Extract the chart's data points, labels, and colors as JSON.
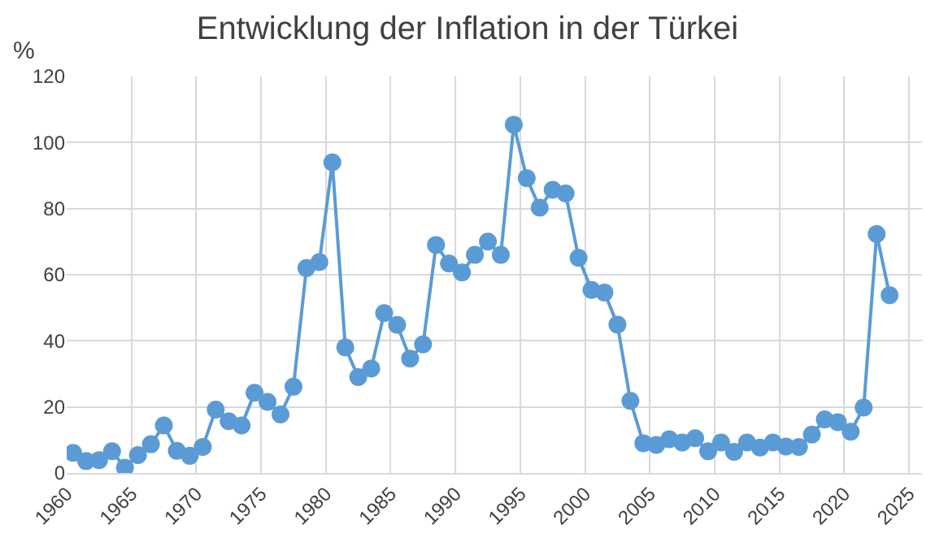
{
  "chart_data": {
    "type": "line",
    "title": "Entwicklung der Inflation in der Türkei",
    "ylabel": "%",
    "x": [
      1960.5,
      1961.5,
      1962.5,
      1963.5,
      1964.5,
      1965.5,
      1966.5,
      1967.5,
      1968.5,
      1969.5,
      1970.5,
      1971.5,
      1972.5,
      1973.5,
      1974.5,
      1975.5,
      1976.5,
      1977.5,
      1978.5,
      1979.5,
      1980.5,
      1981.5,
      1982.5,
      1983.5,
      1984.5,
      1985.5,
      1986.5,
      1987.5,
      1988.5,
      1989.5,
      1990.5,
      1991.5,
      1992.5,
      1993.5,
      1994.5,
      1995.5,
      1996.5,
      1997.5,
      1998.5,
      1999.5,
      2000.5,
      2001.5,
      2002.5,
      2003.5,
      2004.5,
      2005.5,
      2006.5,
      2007.5,
      2008.5,
      2009.5,
      2010.5,
      2011.5,
      2012.5,
      2013.5,
      2014.5,
      2015.5,
      2016.5,
      2017.5,
      2018.5,
      2019.5,
      2020.5,
      2021.5,
      2022.5,
      2023.5
    ],
    "series": [
      {
        "color": "#5b9bd5",
        "values": [
          6.1,
          3.6,
          3.9,
          6.6,
          1.6,
          5.4,
          8.7,
          14.4,
          6.7,
          5.2,
          7.9,
          19.2,
          15.7,
          14.4,
          24.3,
          21.5,
          17.7,
          26.1,
          62,
          63.8,
          94,
          38,
          29,
          31.6,
          48.4,
          44.8,
          34.6,
          38.9,
          69,
          63.4,
          60.7,
          66,
          70,
          66,
          105.4,
          89.2,
          80.3,
          85.7,
          84.6,
          65.1,
          55.4,
          54.6,
          44.9,
          21.8,
          9,
          8.5,
          10.2,
          9.2,
          10.5,
          6.6,
          9.2,
          6.4,
          9.2,
          7.7,
          9.2,
          8,
          7.9,
          11.6,
          16.2,
          15.4,
          12.5,
          19.8,
          72.3,
          53.8
        ]
      }
    ],
    "xlim": [
      1960,
      2026
    ],
    "xticks": [
      1960,
      1965,
      1970,
      1975,
      1980,
      1985,
      1990,
      1995,
      2000,
      2005,
      2010,
      2015,
      2020,
      2025
    ],
    "ylim": [
      0,
      120
    ],
    "yticks": [
      0,
      20,
      40,
      60,
      80,
      100,
      120
    ],
    "grid": true,
    "marker": "circle"
  }
}
